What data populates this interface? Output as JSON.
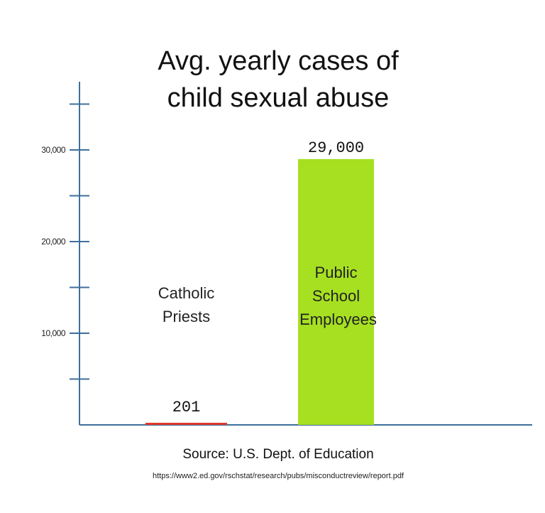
{
  "chart_data": {
    "type": "bar",
    "title_lines": [
      "Avg. yearly cases of",
      "child sexual abuse"
    ],
    "categories": [
      {
        "lines": [
          "Catholic",
          "Priests"
        ]
      },
      {
        "lines": [
          "Public",
          "School",
          "Employees"
        ]
      }
    ],
    "values": [
      201,
      29000
    ],
    "value_labels": [
      "201",
      "29,000"
    ],
    "yticks": [
      {
        "value": 10000,
        "label": "10,000"
      },
      {
        "value": 20000,
        "label": "20,000"
      },
      {
        "value": 30000,
        "label": "30,000"
      }
    ],
    "minor_ticks": [
      5000,
      15000,
      25000,
      35000
    ],
    "ylim": [
      0,
      35000
    ],
    "colors": {
      "bar_1": "#e03a2e",
      "bar_2": "#a6e021",
      "axis": "#3d6f9c"
    },
    "source": "Source: U.S. Dept. of Education",
    "source_url": "https://www2.ed.gov/rschstat/research/pubs/misconductreview/report.pdf"
  }
}
